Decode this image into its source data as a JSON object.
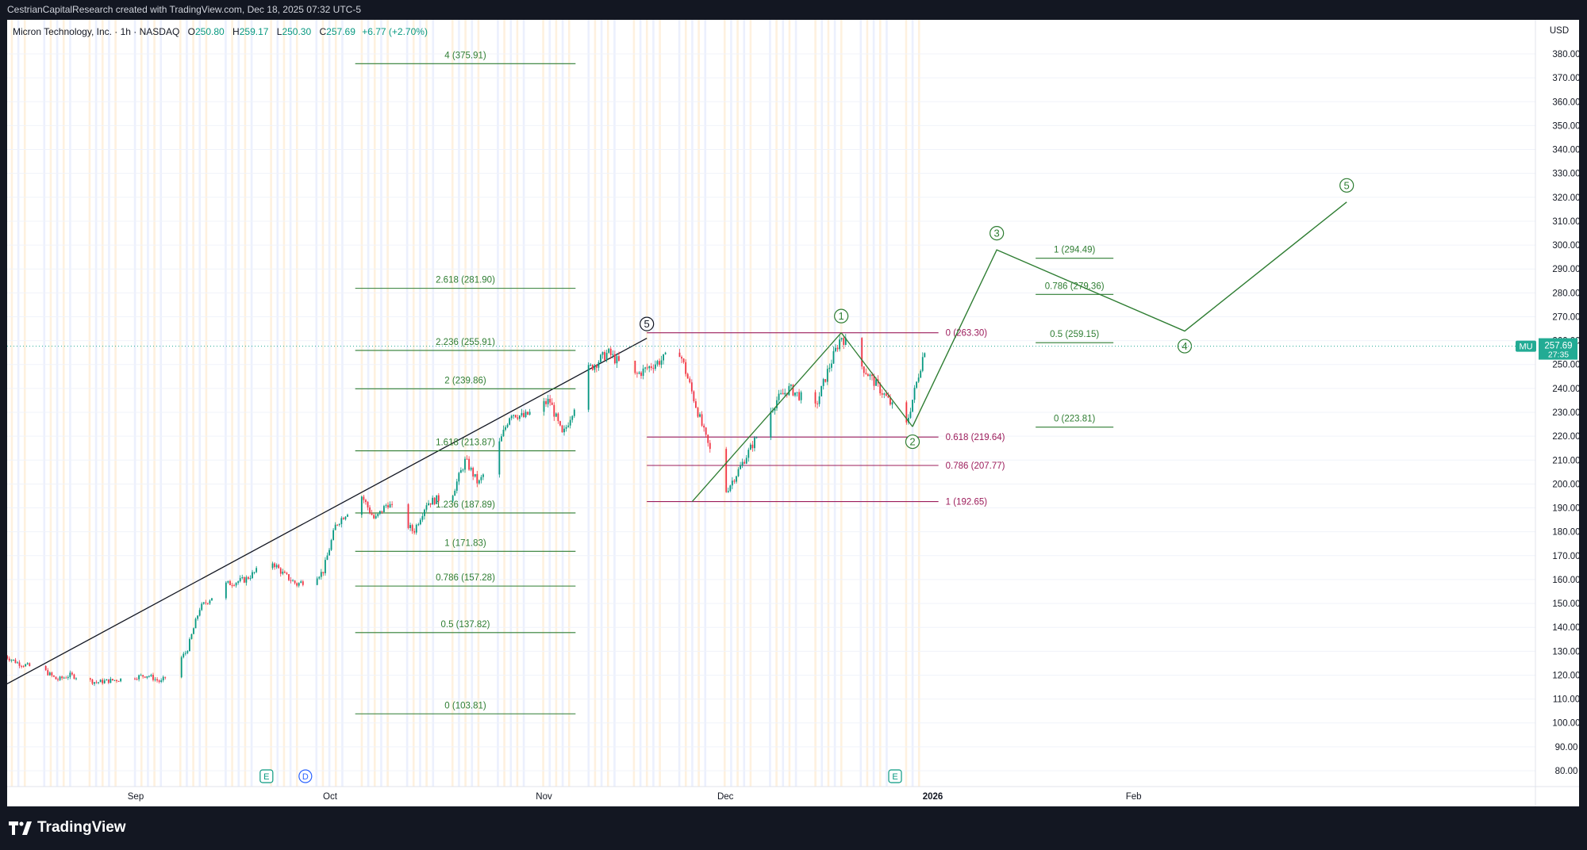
{
  "header": {
    "attribution": "CestrianCapitalResearch created with TradingView.com, Dec 18, 2025 07:32 UTC-5"
  },
  "legend": {
    "symbol": "Micron Technology, Inc. · 1h · NASDAQ",
    "open_label": "O",
    "open": "250.80",
    "high_label": "H",
    "high": "259.17",
    "low_label": "L",
    "low": "250.30",
    "close_label": "C",
    "close": "257.69",
    "change": "+6.77 (+2.70%)"
  },
  "footer": {
    "brand": "TradingView"
  },
  "colors": {
    "green": "#2e7d32",
    "maroon": "#9c1c5b",
    "up": "#089981",
    "down": "#f23645",
    "ticker_badge": "#22ab94"
  },
  "chart_data": {
    "type": "candlestick",
    "y_axis": {
      "currency": "USD",
      "range": [
        75,
        385
      ],
      "ticks": [
        "80.00",
        "90.00",
        "100.00",
        "110.00",
        "120.00",
        "130.00",
        "140.00",
        "150.00",
        "160.00",
        "170.00",
        "180.00",
        "190.00",
        "200.00",
        "210.00",
        "220.00",
        "230.00",
        "240.00",
        "250.00",
        "260.00",
        "270.00",
        "280.00",
        "290.00",
        "300.00",
        "310.00",
        "320.00",
        "330.00",
        "340.00",
        "350.00",
        "360.00",
        "370.00",
        "380.00"
      ]
    },
    "x_axis": {
      "ticks": [
        {
          "label": "Sep",
          "bold": false,
          "date": "2025-09-01"
        },
        {
          "label": "Oct",
          "bold": false,
          "date": "2025-10-01"
        },
        {
          "label": "Nov",
          "bold": false,
          "date": "2025-11-03"
        },
        {
          "label": "Dec",
          "bold": false,
          "date": "2025-12-01"
        },
        {
          "label": "2026",
          "bold": true,
          "date": "2026-01-02"
        },
        {
          "label": "Feb",
          "bold": false,
          "date": "2026-02-02"
        }
      ]
    },
    "price": {
      "symbol": "MU",
      "last": "257.69",
      "countdown": "27:35",
      "last_value": 257.69,
      "path": [
        [
          "2025-08-12",
          128
        ],
        [
          "2025-08-14",
          125
        ],
        [
          "2025-08-18",
          122
        ],
        [
          "2025-08-20",
          118
        ],
        [
          "2025-08-22",
          120
        ],
        [
          "2025-08-26",
          117
        ],
        [
          "2025-08-29",
          118
        ],
        [
          "2025-09-03",
          120
        ],
        [
          "2025-09-05",
          117
        ],
        [
          "2025-09-09",
          130
        ],
        [
          "2025-09-11",
          148
        ],
        [
          "2025-09-15",
          158
        ],
        [
          "2025-09-18",
          160
        ],
        [
          "2025-09-22",
          168
        ],
        [
          "2025-09-24",
          162
        ],
        [
          "2025-09-26",
          158
        ],
        [
          "2025-09-30",
          163
        ],
        [
          "2025-10-02",
          183
        ],
        [
          "2025-10-06",
          195
        ],
        [
          "2025-10-08",
          185
        ],
        [
          "2025-10-10",
          192
        ],
        [
          "2025-10-14",
          180
        ],
        [
          "2025-10-16",
          192
        ],
        [
          "2025-10-20",
          196
        ],
        [
          "2025-10-22",
          210
        ],
        [
          "2025-10-24",
          200
        ],
        [
          "2025-10-27",
          215
        ],
        [
          "2025-10-29",
          230
        ],
        [
          "2025-10-31",
          228
        ],
        [
          "2025-11-04",
          235
        ],
        [
          "2025-11-06",
          220
        ],
        [
          "2025-11-10",
          248
        ],
        [
          "2025-11-13",
          255
        ],
        [
          "2025-11-17",
          245
        ],
        [
          "2025-11-20",
          250
        ],
        [
          "2025-11-24",
          256
        ],
        [
          "2025-11-26",
          238
        ],
        [
          "2025-11-28",
          220
        ],
        [
          "2025-12-01",
          196
        ],
        [
          "2025-12-03",
          205
        ],
        [
          "2025-12-05",
          215
        ],
        [
          "2025-12-09",
          235
        ],
        [
          "2025-12-11",
          240
        ],
        [
          "2025-12-15",
          232
        ],
        [
          "2025-12-17",
          248
        ],
        [
          "2025-12-19",
          262
        ],
        [
          "2025-12-22",
          250
        ],
        [
          "2025-12-26",
          236
        ],
        [
          "2025-12-29",
          224
        ],
        [
          "2026-01-01",
          258
        ]
      ]
    },
    "waves": [
      {
        "label": "5",
        "date": "2025-11-19",
        "value": 260,
        "color": "black"
      },
      {
        "label": "1",
        "date": "2025-12-19",
        "value": 263.3,
        "color": "green"
      },
      {
        "label": "2",
        "date": "2025-12-30",
        "value": 224,
        "color": "green"
      },
      {
        "label": "3",
        "date": "2026-01-12",
        "value": 298,
        "color": "green"
      },
      {
        "label": "4",
        "date": "2026-02-10",
        "value": 264,
        "color": "green"
      },
      {
        "label": "5",
        "date": "2026-03-07",
        "value": 318,
        "color": "green"
      }
    ],
    "projection": [
      [
        "2025-12-30",
        224
      ],
      [
        "2026-01-12",
        298
      ],
      [
        "2026-02-10",
        264
      ],
      [
        "2026-03-07",
        318
      ]
    ],
    "impulse_lines": [
      {
        "from": [
          "2025-11-26",
          192.65
        ],
        "to": [
          "2025-12-19",
          263.3
        ]
      },
      {
        "from": [
          "2025-12-19",
          263.3
        ],
        "to": [
          "2025-12-30",
          224
        ]
      }
    ],
    "trendline": {
      "from": [
        "2025-08-11",
        117
      ],
      "to": [
        "2025-11-19",
        261
      ]
    },
    "fib_sets": [
      {
        "color": "green",
        "x": [
          "2025-10-05",
          "2025-11-08"
        ],
        "levels": [
          {
            "label": "4 (375.91)",
            "value": 375.91
          },
          {
            "label": "2.618 (281.90)",
            "value": 281.9
          },
          {
            "label": "2.236 (255.91)",
            "value": 255.91
          },
          {
            "label": "2 (239.86)",
            "value": 239.86
          },
          {
            "label": "1.618 (213.87)",
            "value": 213.87
          },
          {
            "label": "1.236 (187.89)",
            "value": 187.89
          },
          {
            "label": "1 (171.83)",
            "value": 171.83
          },
          {
            "label": "0.786 (157.28)",
            "value": 157.28
          },
          {
            "label": "0.5 (137.82)",
            "value": 137.82
          },
          {
            "label": "0 (103.81)",
            "value": 103.81
          }
        ]
      },
      {
        "color": "maroon",
        "x": [
          "2025-11-19",
          "2026-01-03"
        ],
        "label_side": "right",
        "levels": [
          {
            "label": "0 (263.30)",
            "value": 263.3
          },
          {
            "label": "0.618 (219.64)",
            "value": 219.64
          },
          {
            "label": "0.786 (207.77)",
            "value": 207.77
          },
          {
            "label": "1 (192.65)",
            "value": 192.65
          }
        ]
      },
      {
        "color": "green",
        "x": [
          "2026-01-18",
          "2026-01-30"
        ],
        "levels": [
          {
            "label": "1 (294.49)",
            "value": 294.49
          },
          {
            "label": "0.786 (279.36)",
            "value": 279.36
          },
          {
            "label": "0.5 (259.15)",
            "value": 259.15
          },
          {
            "label": "0 (223.81)",
            "value": 223.81
          }
        ]
      }
    ],
    "events": [
      {
        "label": "E",
        "date": "2025-09-24",
        "type": "earnings"
      },
      {
        "label": "D",
        "date": "2025-09-30",
        "type": "dividend"
      },
      {
        "label": "E",
        "date": "2025-12-30",
        "type": "earnings"
      }
    ]
  }
}
